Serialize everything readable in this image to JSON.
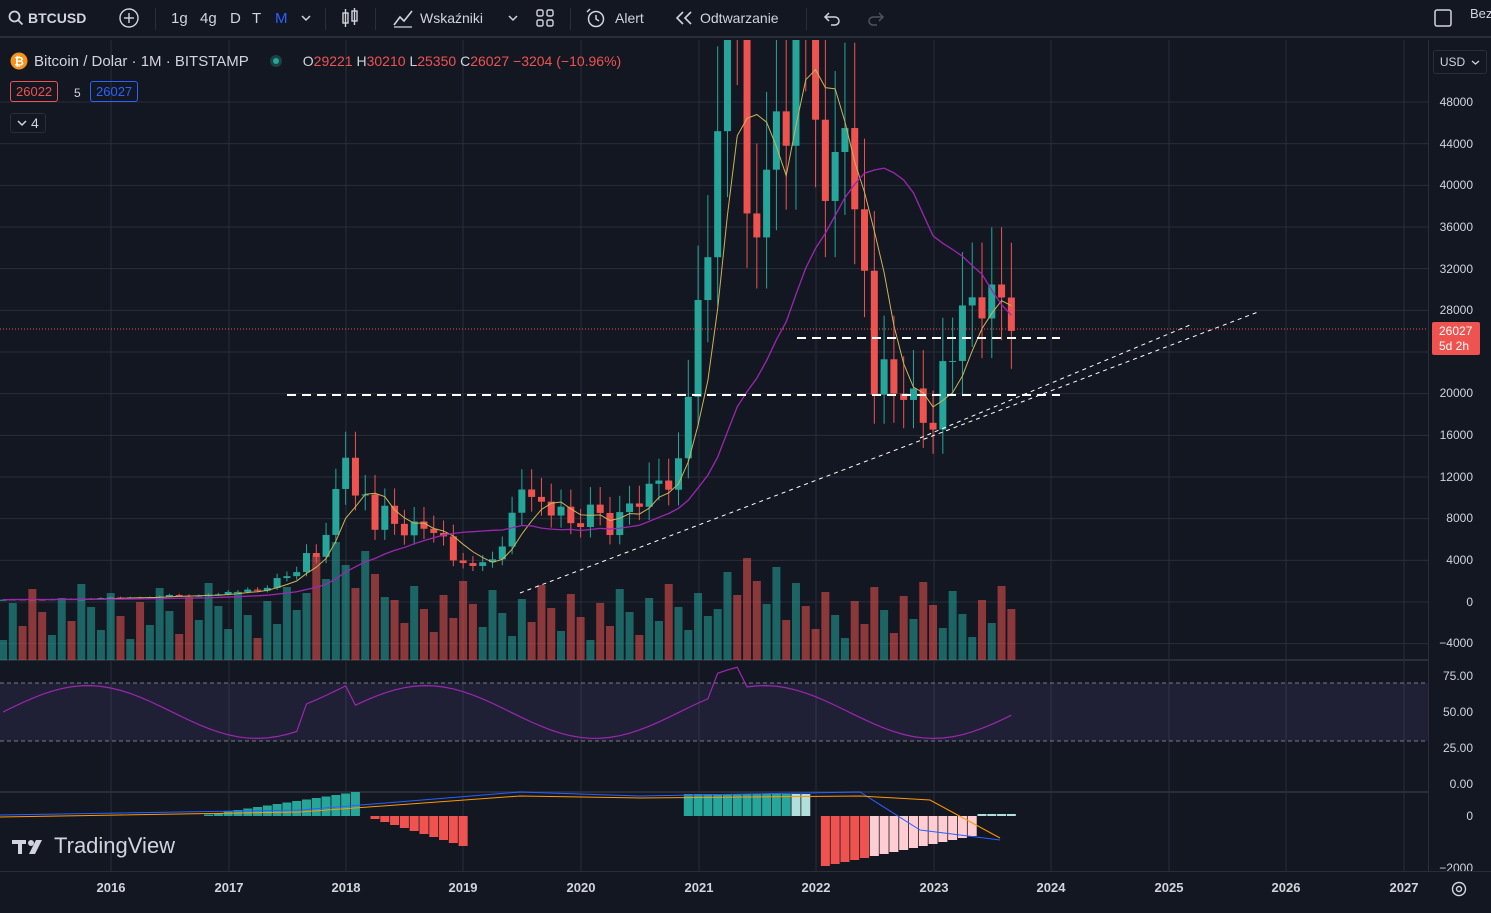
{
  "toolbar": {
    "symbol": "BTCUSD",
    "intervals": [
      "1g",
      "4g",
      "D",
      "T",
      "M"
    ],
    "active_interval": "M",
    "indicators_label": "Wskaźniki",
    "alert_label": "Alert",
    "replay_label": "Odtwarzanie",
    "right_label": "Bez"
  },
  "legend": {
    "title": "Bitcoin / Dolar · 1M · BITSTAMP",
    "o_label": "O",
    "o_value": "29221",
    "h_label": "H",
    "h_value": "30210",
    "l_label": "L",
    "l_value": "25350",
    "c_label": "C",
    "c_value": "26027",
    "change": "−3204 (−10.96%)",
    "bid": "26022",
    "spread": "5",
    "ask": "26027",
    "collapse_count": "4"
  },
  "price_axis": {
    "currency": "USD",
    "labels": [
      "48000",
      "44000",
      "40000",
      "36000",
      "32000",
      "28000",
      "20000",
      "16000",
      "12000",
      "8000",
      "4000",
      "0",
      "−4000"
    ],
    "current_price": "26027",
    "countdown": "5d 2h",
    "rsi_labels": [
      "75.00",
      "50.00",
      "25.00",
      "0.00"
    ],
    "macd_labels": [
      "0",
      "−2000"
    ]
  },
  "time_axis": {
    "labels": [
      "2016",
      "2017",
      "2018",
      "2019",
      "2020",
      "2021",
      "2022",
      "2023",
      "2024",
      "2025",
      "2026",
      "2027"
    ]
  },
  "branding": {
    "logo_text": "TradingView"
  },
  "colors": {
    "up": "#26a69a",
    "down": "#ef5350",
    "bg": "#131722",
    "grid": "#2a2e39",
    "ma_fast": "#c9b45a",
    "ma_slow": "#9c27b0",
    "rsi": "#9c27b0",
    "macd_blue": "#2962ff",
    "macd_orange": "#ff9800"
  }
}
